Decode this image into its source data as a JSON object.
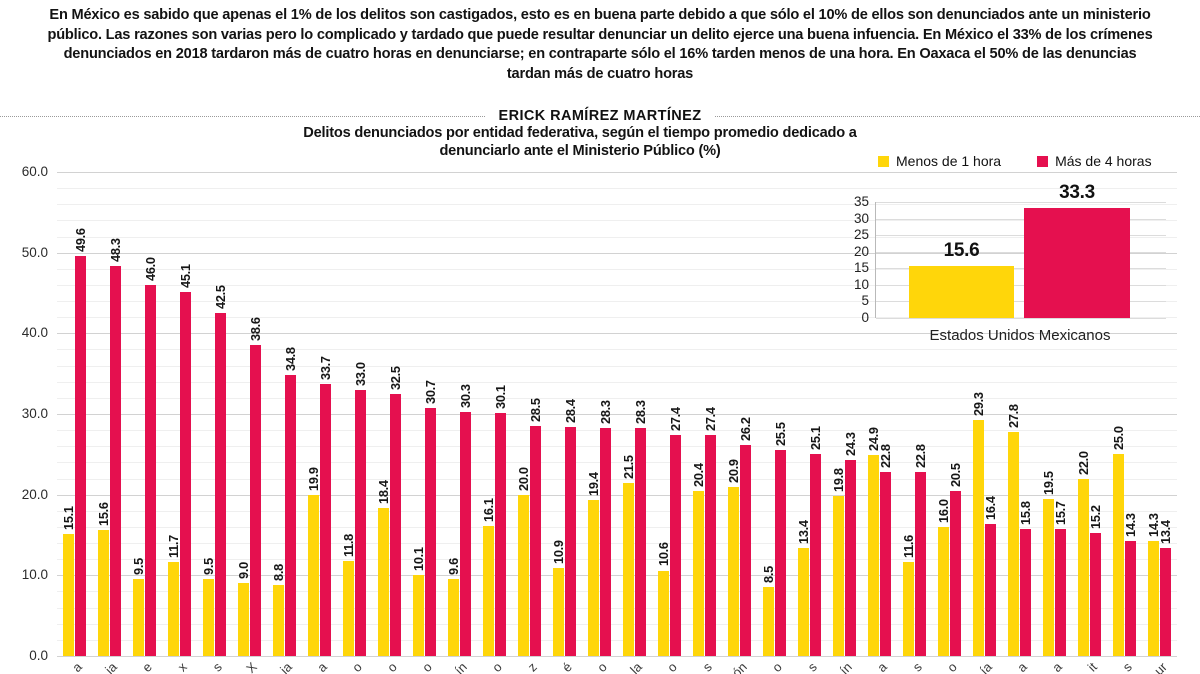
{
  "page": {
    "intro": "En México es sabido que apenas el 1% de los delitos son castigados, esto es en buena parte debido a que sólo el 10% de ellos son denunciados ante un ministerio público. Las razones son varias pero lo complicado y tardado que puede resultar denunciar un delito ejerce una buena infuencia. En México el 33% de los crímenes denunciados en 2018 tardaron más de cuatro horas en denunciarse; en contraparte sólo el 16% tarden menos de una hora. En Oaxaca el 50% de las denuncias tardan más de cuatro horas",
    "byline": "ERICK RAMÍREZ MARTÍNEZ"
  },
  "colors": {
    "yellow": "#ffd60a",
    "red": "#e5104f"
  },
  "chart_data": [
    {
      "type": "bar",
      "title": "Delitos denunciados por entidad federativa, según el tiempo promedio dedicado a denunciarlo ante el Ministerio Público (%)",
      "legend": [
        {
          "label": "Menos de 1 hora",
          "color": "#ffd60a"
        },
        {
          "label": "Más de 4 horas",
          "color": "#e5104f"
        }
      ],
      "legend_position": "top-right",
      "grid": true,
      "ylim": [
        0,
        60
      ],
      "y_ticks": [
        "60.0",
        "50.0",
        "40.0",
        "30.0",
        "20.0",
        "10.0",
        "0.0"
      ],
      "x_labels_visible_fragments": [
        "a",
        "ia",
        "e",
        "x",
        "s",
        "X",
        "ia",
        "a",
        "o",
        "o",
        "o",
        "ín",
        "o",
        "z",
        "é",
        "o",
        "la",
        "o",
        "s",
        "ón",
        "o",
        "s",
        "ín",
        "a",
        "s",
        "o",
        "ía",
        "a",
        "a",
        "it",
        "s",
        "ur"
      ],
      "series": [
        {
          "name": "Menos de 1 hora",
          "values": [
            15.1,
            15.6,
            9.5,
            11.7,
            9.5,
            9.0,
            8.8,
            19.9,
            11.8,
            18.4,
            10.1,
            9.6,
            16.1,
            20.0,
            10.9,
            19.4,
            21.5,
            10.6,
            20.4,
            20.9,
            8.5,
            13.4,
            19.8,
            24.9,
            11.6,
            16.0,
            29.3,
            27.8,
            19.5,
            22.0,
            25.0,
            14.3
          ]
        },
        {
          "name": "Más de 4 horas",
          "values": [
            49.6,
            48.3,
            46.0,
            45.1,
            42.5,
            38.6,
            34.8,
            33.7,
            33.0,
            32.5,
            30.7,
            30.3,
            30.1,
            28.5,
            28.4,
            28.3,
            28.3,
            27.4,
            27.4,
            26.2,
            25.5,
            25.1,
            24.3,
            22.8,
            22.8,
            20.5,
            16.4,
            15.8,
            15.7,
            15.2,
            14.3,
            13.4
          ]
        }
      ]
    },
    {
      "type": "bar",
      "title": "",
      "categories": [
        "Estados Unidos Mexicanos"
      ],
      "grid": true,
      "ylim": [
        0,
        35
      ],
      "y_ticks": [
        "35",
        "30",
        "25",
        "20",
        "15",
        "10",
        "5",
        "0"
      ],
      "series": [
        {
          "name": "Menos de 1 hora",
          "values": [
            15.6
          ]
        },
        {
          "name": "Más de 4 horas",
          "values": [
            33.3
          ]
        }
      ]
    }
  ]
}
